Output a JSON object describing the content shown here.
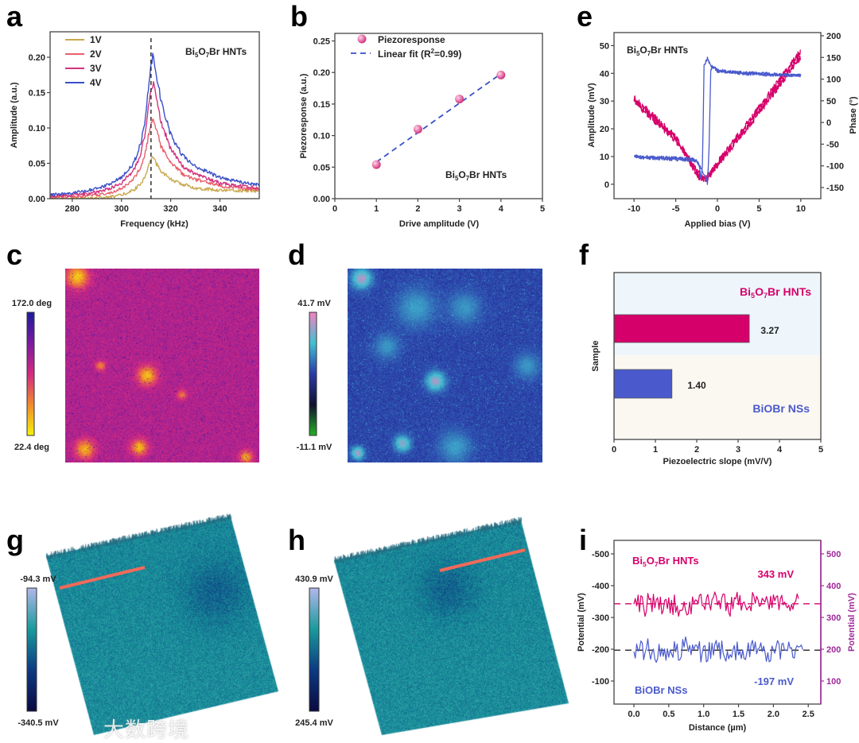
{
  "figure": {
    "panel_letters": [
      "a",
      "b",
      "c",
      "d",
      "e",
      "f",
      "g",
      "h",
      "i"
    ],
    "watermark": "大数跨境"
  },
  "colors": {
    "v1": "#c9a94e",
    "v2": "#e8606a",
    "v3": "#d3337d",
    "v4": "#3a4fc8",
    "pink": "#d6006a",
    "blue": "#4a5acd",
    "purple_axis": "#a0289a",
    "f_top_band": "#eef6fc",
    "f_bottom_band": "#fbf8f2"
  },
  "chart_data": [
    {
      "panel": "a",
      "type": "line",
      "xlabel": "Frequency (kHz)",
      "ylabel": "Amplitude (a.u.)",
      "xlim": [
        271,
        356
      ],
      "ylim": [
        0,
        0.236
      ],
      "xticks": [
        "280",
        "300",
        "320",
        "340"
      ],
      "yticks": [
        "0.00",
        "0.05",
        "0.10",
        "0.15",
        "0.20"
      ],
      "annotation": [
        "Bi",
        "5",
        "O",
        "7",
        "Br HNTs"
      ],
      "resonance_line_x": 312,
      "x": [
        271,
        280,
        290,
        295,
        300,
        305,
        308,
        310,
        311,
        312,
        313,
        314,
        316,
        320,
        325,
        330,
        340,
        350,
        356
      ],
      "series": [
        {
          "name": "1V",
          "values": [
            0.0,
            0.0,
            0.001,
            0.002,
            0.005,
            0.012,
            0.022,
            0.035,
            0.045,
            0.055,
            0.058,
            0.05,
            0.04,
            0.027,
            0.02,
            0.015,
            0.012,
            0.011,
            0.011
          ]
        },
        {
          "name": "2V",
          "values": [
            0.002,
            0.003,
            0.005,
            0.008,
            0.014,
            0.028,
            0.045,
            0.07,
            0.09,
            0.105,
            0.112,
            0.1,
            0.075,
            0.05,
            0.035,
            0.027,
            0.018,
            0.014,
            0.013
          ]
        },
        {
          "name": "3V",
          "values": [
            0.003,
            0.005,
            0.009,
            0.014,
            0.022,
            0.04,
            0.065,
            0.1,
            0.13,
            0.155,
            0.165,
            0.145,
            0.11,
            0.07,
            0.045,
            0.035,
            0.022,
            0.017,
            0.015
          ]
        },
        {
          "name": "4V",
          "values": [
            0.005,
            0.008,
            0.014,
            0.02,
            0.03,
            0.05,
            0.08,
            0.12,
            0.16,
            0.19,
            0.205,
            0.18,
            0.14,
            0.09,
            0.06,
            0.045,
            0.03,
            0.022,
            0.02
          ]
        }
      ]
    },
    {
      "panel": "b",
      "type": "scatter",
      "xlabel": "Drive amplitude (V)",
      "ylabel": "Piezoresponse (a.u.)",
      "xlim": [
        0,
        5
      ],
      "ylim": [
        0,
        0.262
      ],
      "xticks": [
        "0",
        "1",
        "2",
        "3",
        "4",
        "5"
      ],
      "yticks": [
        "0.00",
        "0.05",
        "0.10",
        "0.15",
        "0.20",
        "0.25"
      ],
      "legend": {
        "points": "Piezoresponse",
        "fit": [
          "Linear fit (R",
          "2",
          "=0.99)"
        ]
      },
      "annotation": [
        "Bi",
        "5",
        "O",
        "7",
        "Br HNTs"
      ],
      "points": [
        {
          "x": 1,
          "y": 0.054
        },
        {
          "x": 2,
          "y": 0.11
        },
        {
          "x": 3,
          "y": 0.158
        },
        {
          "x": 4,
          "y": 0.196
        }
      ],
      "fit": [
        {
          "x": 1,
          "y": 0.058
        },
        {
          "x": 4,
          "y": 0.198
        }
      ]
    },
    {
      "panel": "c",
      "type": "heatmap",
      "colorbar": {
        "max": "172.0 deg",
        "min": "22.4 deg",
        "colors": [
          "#f5f20c",
          "#f08a2c",
          "#d42a80",
          "#7a1aa0",
          "#1c1c9c"
        ]
      }
    },
    {
      "panel": "d",
      "type": "heatmap",
      "colorbar": {
        "max": "41.7 mV",
        "min": "-11.1 mV",
        "colors": [
          "#22b022",
          "#101030",
          "#2a3aa8",
          "#42c0d2",
          "#f282c2"
        ]
      }
    },
    {
      "panel": "e",
      "type": "line",
      "xlabel": "Applied bias (V)",
      "ylabel": "Amplitude (mV)",
      "y2label": "Phase (°)",
      "xlim": [
        -12.4,
        12.4
      ],
      "ylim": [
        -5.2,
        54.7
      ],
      "y2lim": [
        -175.7,
        207.3
      ],
      "xticks": [
        "-10",
        "-5",
        "0",
        "5",
        "10"
      ],
      "yticks": [
        "0",
        "10",
        "20",
        "30",
        "40",
        "50"
      ],
      "y2ticks": [
        "-150",
        "-100",
        "-50",
        "0",
        "50",
        "100",
        "150",
        "200"
      ],
      "annotation": [
        "Bi",
        "5",
        "O",
        "7",
        "Br HNTs"
      ],
      "amplitude_branches": [
        [
          [
            -10,
            31
          ],
          [
            -5,
            17
          ],
          [
            -2.3,
            3
          ],
          [
            -1.6,
            1.5
          ],
          [
            0,
            7
          ],
          [
            5,
            26
          ],
          [
            10,
            46
          ]
        ],
        [
          [
            -10,
            30
          ],
          [
            -5,
            16
          ],
          [
            -1.8,
            2
          ],
          [
            -1.1,
            2.5
          ],
          [
            0,
            7.5
          ],
          [
            5,
            27.5
          ],
          [
            10,
            48
          ]
        ]
      ],
      "phase_branches": [
        [
          [
            -10,
            -78
          ],
          [
            -3,
            -84
          ],
          [
            -2.2,
            -95
          ],
          [
            -2.0,
            -130
          ],
          [
            -1.8,
            -100
          ],
          [
            -1.6,
            130
          ],
          [
            -1.2,
            150
          ],
          [
            -0.8,
            130
          ],
          [
            0,
            122
          ],
          [
            3,
            112
          ],
          [
            10,
            108
          ]
        ],
        [
          [
            10,
            108
          ],
          [
            0,
            118
          ],
          [
            -0.6,
            130
          ],
          [
            -0.8,
            120
          ],
          [
            -1.0,
            -60
          ],
          [
            -1.2,
            -140
          ],
          [
            -1.3,
            -130
          ],
          [
            -2.5,
            -88
          ],
          [
            -10,
            -80
          ]
        ]
      ]
    },
    {
      "panel": "f",
      "type": "bar",
      "xlabel": "Piezoelectric slope (mV/V)",
      "ylabel": "Sample",
      "xlim": [
        0,
        5
      ],
      "xticks": [
        "0",
        "1",
        "2",
        "3",
        "4",
        "5"
      ],
      "bars": [
        {
          "name": [
            "Bi",
            "5",
            "O",
            "7",
            "Br HNTs"
          ],
          "value": 3.27,
          "label": "3.27"
        },
        {
          "name": [
            "BiOBr NSs"
          ],
          "value": 1.4,
          "label": "1.40"
        }
      ]
    },
    {
      "panel": "g",
      "type": "heatmap",
      "colorbar": {
        "max": "-94.3 mV",
        "min": "-340.5 mV",
        "colors": [
          "#0a0a40",
          "#0c3a82",
          "#1a9a9c",
          "#b2b8ea"
        ]
      }
    },
    {
      "panel": "h",
      "type": "heatmap",
      "colorbar": {
        "max": "430.9 mV",
        "min": "245.4 mV",
        "colors": [
          "#0a0a40",
          "#0c3a82",
          "#1a9a9c",
          "#b2b8ea"
        ]
      }
    },
    {
      "panel": "i",
      "type": "line",
      "xlabel": "Distance (µm)",
      "ylabel": "Potential (mV)",
      "y2label": "Potential (mV)",
      "xlim": [
        -0.285,
        2.68
      ],
      "ylim": [
        27.5,
        542.5
      ],
      "xticks": [
        "0.0",
        "0.5",
        "1.0",
        "1.5",
        "2.0",
        "2.5"
      ],
      "yticks": [
        "-500",
        "-400",
        "-300",
        "-200",
        "-100"
      ],
      "y2ticks": [
        "500",
        "400",
        "300",
        "200",
        "100"
      ],
      "series": [
        {
          "name": [
            "Bi",
            "5",
            "O",
            "7",
            "Br HNTs"
          ],
          "mean": 343,
          "mean_label": "343 mV",
          "noise": 45,
          "x_range": [
            0,
            2.38
          ]
        },
        {
          "name": [
            "BiOBr NSs"
          ],
          "mean": 197,
          "mean_label": "-197 mV",
          "noise": 45,
          "x_range": [
            0,
            2.44
          ]
        }
      ]
    }
  ]
}
